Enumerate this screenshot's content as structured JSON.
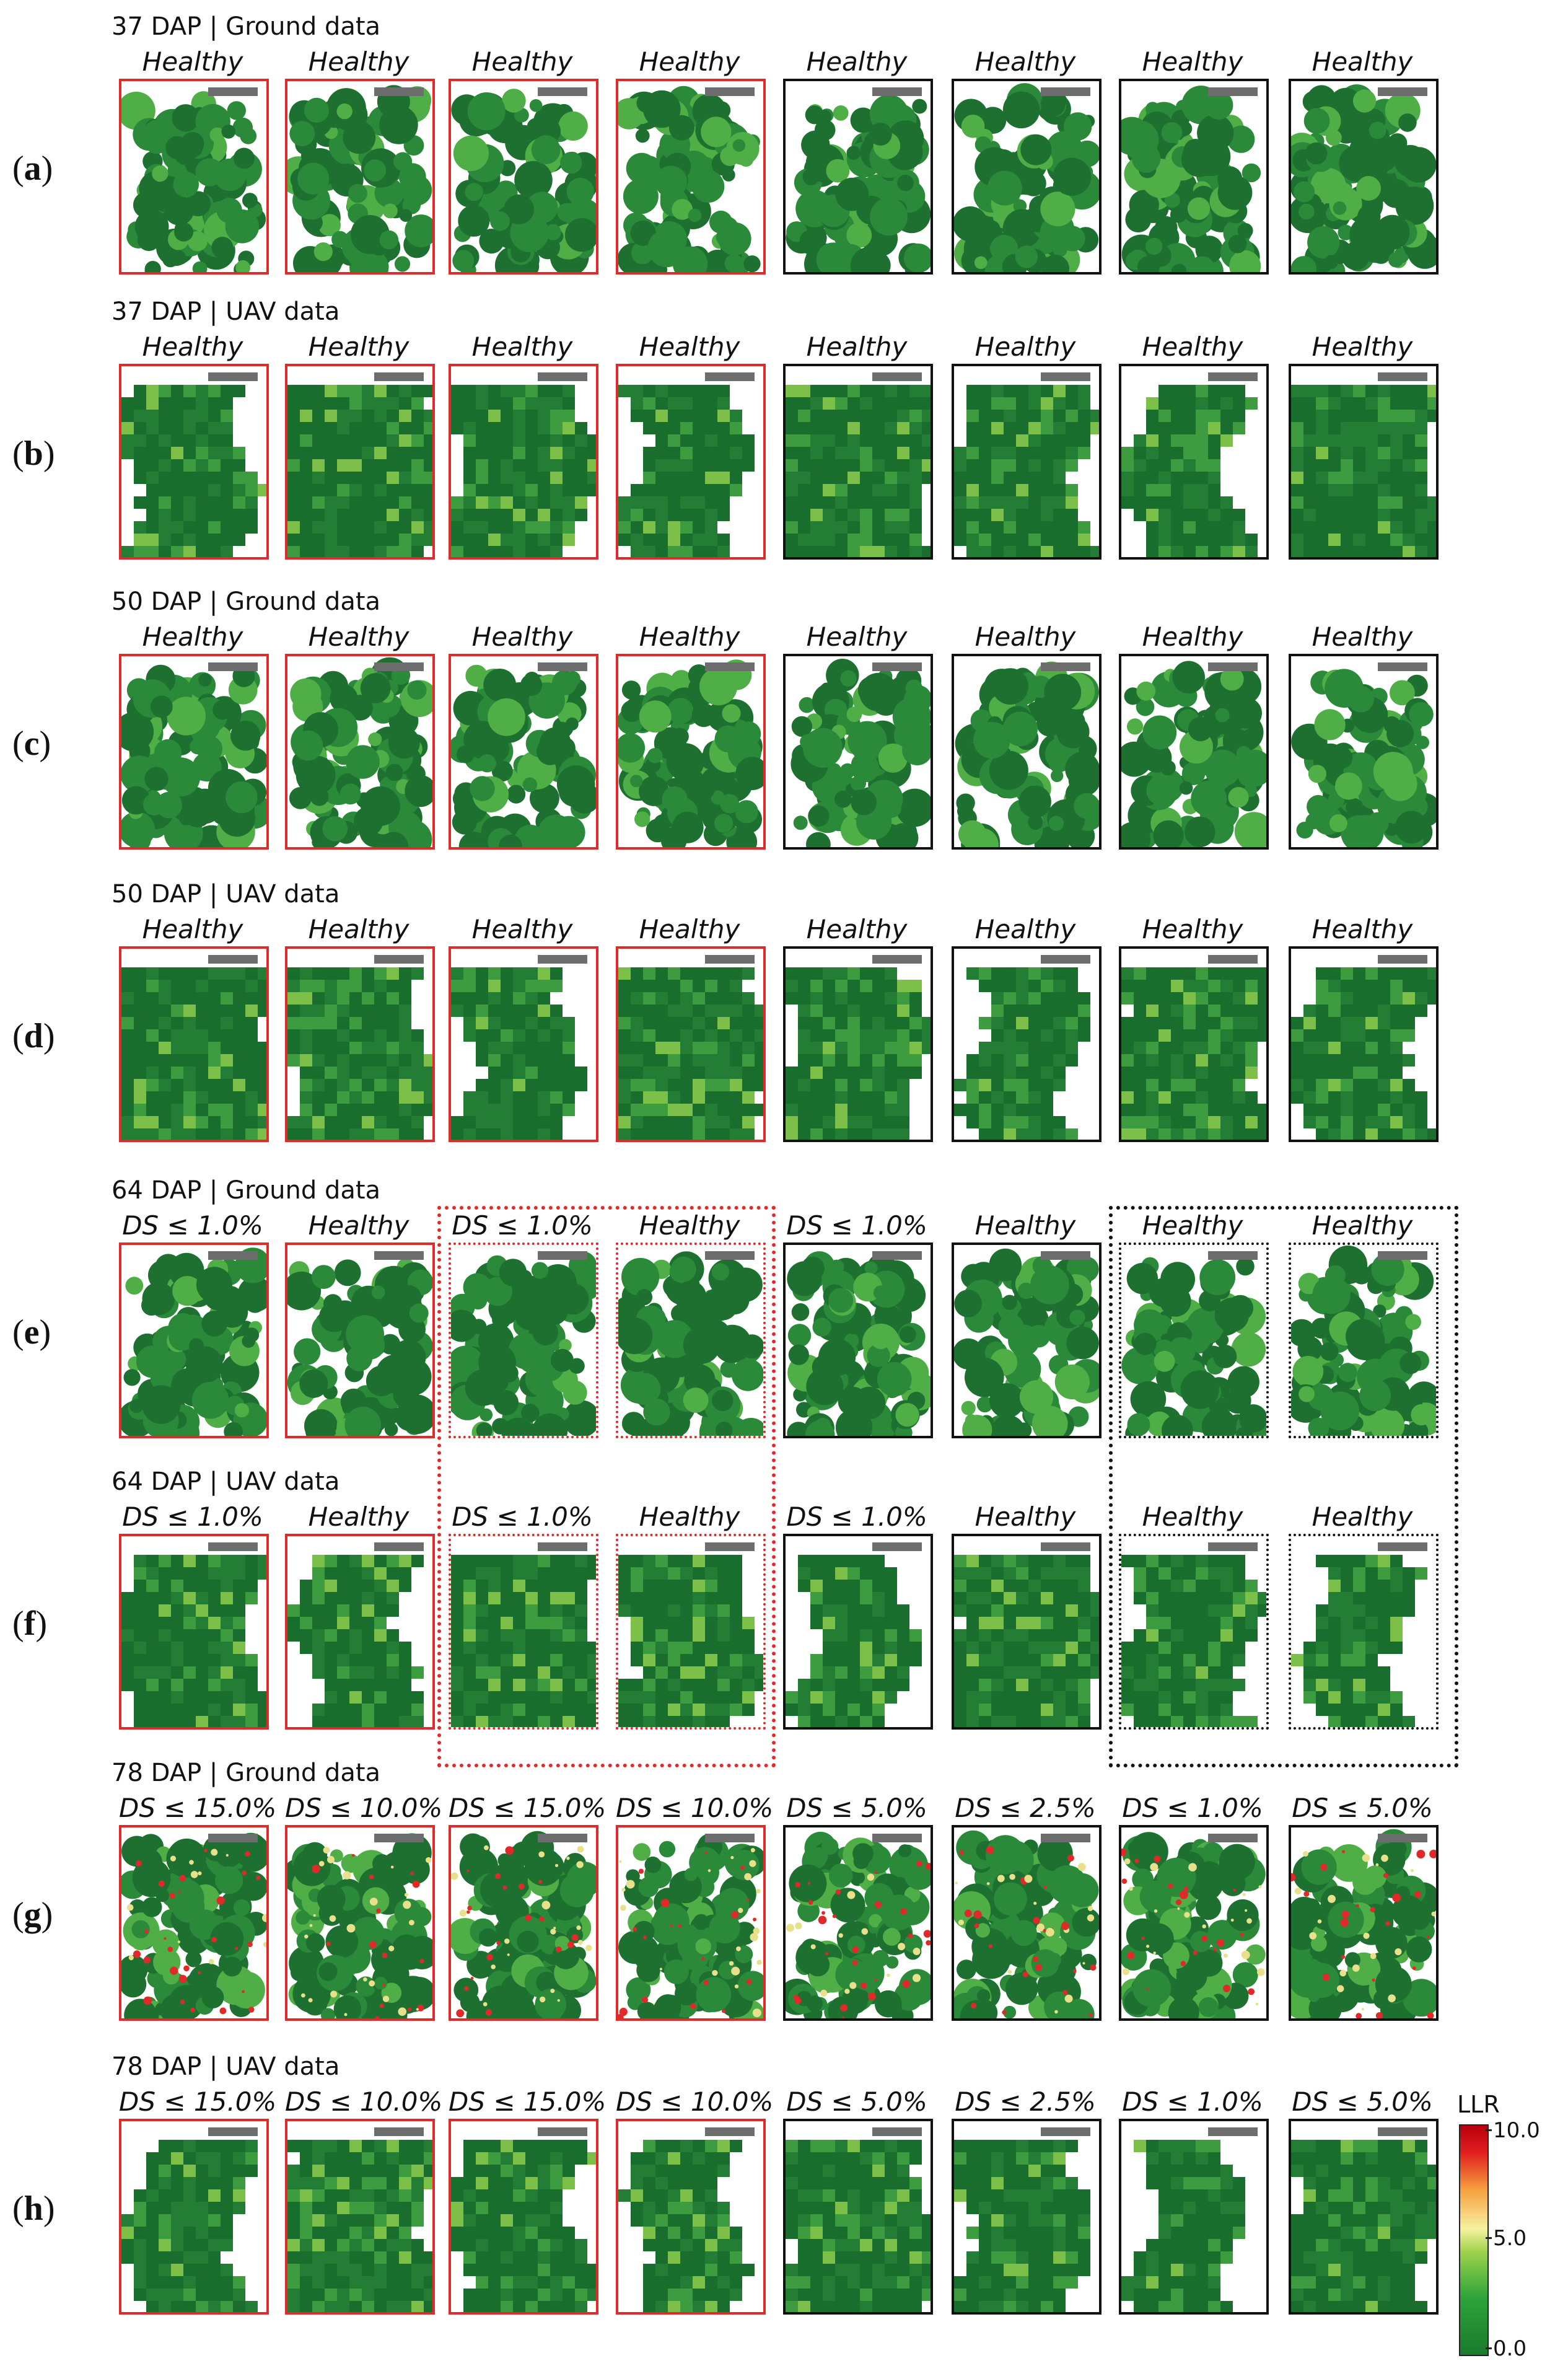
{
  "rows": [
    {
      "letter": "a",
      "title": "37 DAP | Ground data",
      "kind": "ground",
      "labels": [
        "Healthy",
        "Healthy",
        "Healthy",
        "Healthy",
        "Healthy",
        "Healthy",
        "Healthy",
        "Healthy"
      ]
    },
    {
      "letter": "b",
      "title": "37 DAP | UAV data",
      "kind": "uav",
      "labels": [
        "Healthy",
        "Healthy",
        "Healthy",
        "Healthy",
        "Healthy",
        "Healthy",
        "Healthy",
        "Healthy"
      ]
    },
    {
      "letter": "c",
      "title": "50 DAP | Ground data",
      "kind": "ground",
      "labels": [
        "Healthy",
        "Healthy",
        "Healthy",
        "Healthy",
        "Healthy",
        "Healthy",
        "Healthy",
        "Healthy"
      ]
    },
    {
      "letter": "d",
      "title": "50 DAP | UAV data",
      "kind": "uav",
      "labels": [
        "Healthy",
        "Healthy",
        "Healthy",
        "Healthy",
        "Healthy",
        "Healthy",
        "Healthy",
        "Healthy"
      ]
    },
    {
      "letter": "e",
      "title": "64 DAP | Ground data",
      "kind": "ground",
      "labels": [
        "DS ≤ 1.0%",
        "Healthy",
        "DS ≤ 1.0%",
        "Healthy",
        "DS ≤ 1.0%",
        "Healthy",
        "Healthy",
        "Healthy"
      ]
    },
    {
      "letter": "f",
      "title": "64 DAP | UAV data",
      "kind": "uav",
      "labels": [
        "DS ≤ 1.0%",
        "Healthy",
        "DS ≤ 1.0%",
        "Healthy",
        "DS ≤ 1.0%",
        "Healthy",
        "Healthy",
        "Healthy"
      ]
    },
    {
      "letter": "g",
      "title": "78 DAP | Ground data",
      "kind": "ground",
      "labels": [
        "DS ≤ 15.0%",
        "DS ≤ 10.0%",
        "DS ≤ 15.0%",
        "DS ≤ 10.0%",
        "DS ≤ 5.0%",
        "DS ≤ 2.5%",
        "DS ≤ 1.0%",
        "DS ≤ 5.0%"
      ]
    },
    {
      "letter": "h",
      "title": "78 DAP | UAV data",
      "kind": "uav",
      "labels": [
        "DS ≤ 15.0%",
        "DS ≤ 10.0%",
        "DS ≤ 15.0%",
        "DS ≤ 10.0%",
        "DS ≤ 5.0%",
        "DS ≤ 2.5%",
        "DS ≤ 1.0%",
        "DS ≤ 5.0%"
      ]
    }
  ],
  "colorbar": {
    "title": "LLR",
    "ticks": [
      "10.0",
      "5.0",
      "0.0"
    ],
    "range": [
      0.0,
      10.0
    ],
    "colors": [
      "#1a7a2e",
      "#9fd24b",
      "#f7f2a0",
      "#e11f1f"
    ]
  },
  "colors": {
    "inoculated_border": "#e12b2b",
    "control_border": "#111111",
    "canopy": "#1f7a33"
  }
}
